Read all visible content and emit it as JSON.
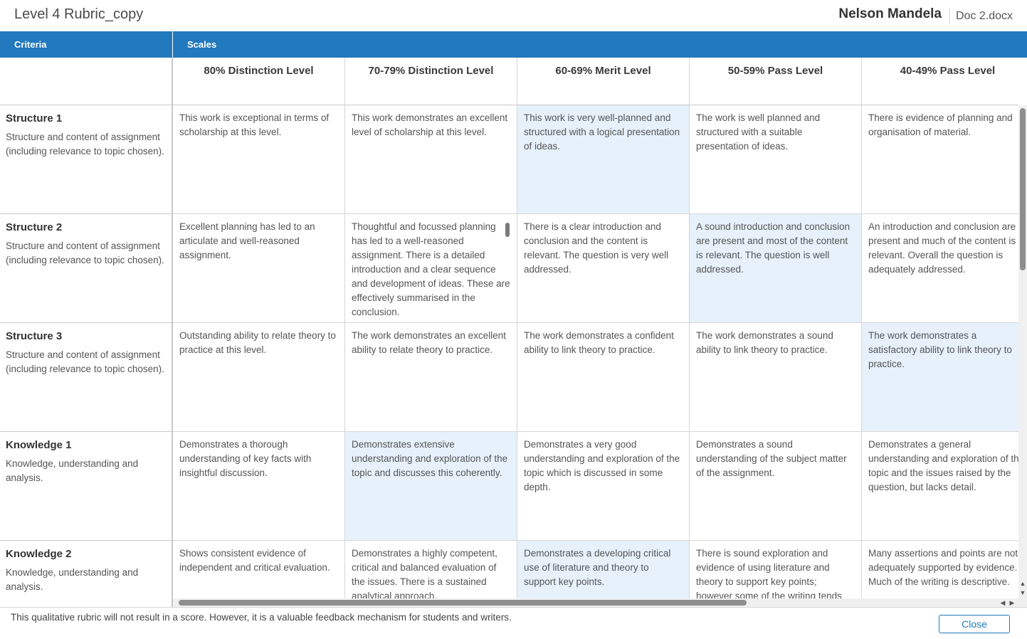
{
  "header": {
    "title": "Level 4 Rubric_copy",
    "student": "Nelson Mandela",
    "document": "Doc 2.docx"
  },
  "table": {
    "criteria_header": "Criteria",
    "scales_header": "Scales",
    "scales": [
      "80% Distinction Level",
      "70-79% Distinction Level",
      "60-69% Merit Level",
      "50-59% Pass Level",
      "40-49% Pass Level"
    ],
    "criteria": [
      {
        "name": "Structure 1",
        "description": "Structure and content of assignment (including relevance to topic chosen).",
        "selected_index": 2,
        "cells": [
          "This work is exceptional in terms of scholarship at this level.",
          "This work demonstrates an excellent level of scholarship at this level.",
          "This work is very well-planned and structured with a logical presentation of ideas.",
          "The work is well planned and structured with a suitable presentation of ideas.",
          "There is evidence of planning and organisation of material."
        ]
      },
      {
        "name": "Structure 2",
        "description": "Structure and content of assignment (including relevance to topic chosen).",
        "selected_index": 3,
        "cells": [
          "Excellent planning has led to an articulate and well-reasoned assignment.",
          "Thoughtful and focussed planning has led to a well-reasoned assignment. There is a detailed introduction and a clear sequence and development of ideas. These are effectively summarised in the conclusion.",
          "There is a clear introduction and conclusion and the content is relevant. The question is very well addressed.",
          "A sound introduction and conclusion are present and most of the content is relevant. The question is well addressed.",
          "An introduction and conclusion are present and much of the content is relevant. Overall the question is adequately addressed."
        ]
      },
      {
        "name": "Structure 3",
        "description": "Structure and content of assignment (including relevance to topic chosen).",
        "selected_index": 4,
        "cells": [
          "Outstanding ability to relate theory to practice at this level.",
          "The work demonstrates an excellent ability to relate theory to practice.",
          "The work demonstrates a confident ability to link theory to practice.",
          "The work demonstrates a sound ability to link theory to practice.",
          "The work demonstrates a satisfactory ability to link theory to practice."
        ]
      },
      {
        "name": "Knowledge 1",
        "description": "Knowledge, understanding and analysis.",
        "selected_index": 1,
        "cells": [
          "Demonstrates a thorough understanding of key facts with insightful discussion.",
          "Demonstrates extensive understanding and exploration of the topic and discusses this coherently.",
          "Demonstrates a very good understanding and exploration of the topic which is discussed in some depth.",
          "Demonstrates a sound understanding of the subject matter of the assignment.",
          "Demonstrates a general understanding and exploration of the topic and the issues raised by the question, but lacks detail."
        ]
      },
      {
        "name": "Knowledge 2",
        "description": "Knowledge, understanding and analysis.",
        "selected_index": 2,
        "cells": [
          "Shows consistent evidence of independent and critical evaluation.",
          "Demonstrates a highly competent, critical and balanced evaluation of the issues. There is a sustained analytical approach.",
          "Demonstrates a developing critical use of literature and theory to support key points.",
          "There is sound exploration and evidence of using literature and theory to support key points; however some of the writing tends",
          "Many assertions and points are not adequately supported by evidence. Much of the writing is descriptive."
        ]
      }
    ]
  },
  "footer": {
    "note": "This qualitative rubric will not result in a score. However, it is a valuable feedback mechanism for students and writers.",
    "close_label": "Close"
  },
  "colors": {
    "header_blue": "#2279bd",
    "selected_cell": "#e6f1fb"
  }
}
